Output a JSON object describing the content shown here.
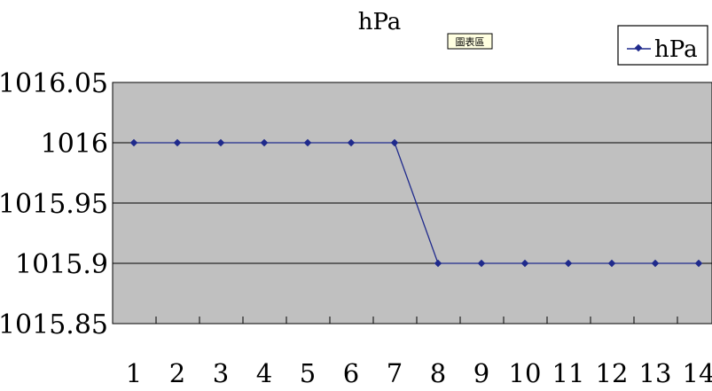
{
  "chart_data": {
    "type": "line",
    "title": "hPa",
    "xlabel": "",
    "ylabel": "",
    "x": [
      1,
      2,
      3,
      4,
      5,
      6,
      7,
      8,
      9,
      10,
      11,
      12,
      13,
      14
    ],
    "series": [
      {
        "name": "hPa",
        "values": [
          1016,
          1016,
          1016,
          1016,
          1016,
          1016,
          1016,
          1015.9,
          1015.9,
          1015.9,
          1015.9,
          1015.9,
          1015.9,
          1015.9
        ],
        "color": "#1f2a8c",
        "marker": "diamond"
      }
    ],
    "y_ticks": [
      "1016.05",
      "1016",
      "1015.95",
      "1015.9",
      "1015.85"
    ],
    "x_ticks": [
      "1",
      "2",
      "3",
      "4",
      "5",
      "6",
      "7",
      "8",
      "9",
      "10",
      "11",
      "12",
      "13",
      "14"
    ],
    "ylim": [
      1015.85,
      1016.05
    ],
    "grid": true,
    "legend": "top-right",
    "plot_background": "#c0c0c0",
    "badge_label": "圖表區"
  }
}
